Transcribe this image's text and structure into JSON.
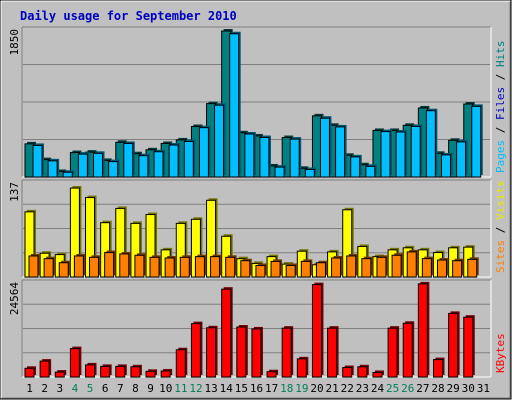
{
  "chart_data": {
    "title": "Daily usage for September 2010",
    "days": [
      {
        "label": "1",
        "weekend": false
      },
      {
        "label": "2",
        "weekend": false
      },
      {
        "label": "3",
        "weekend": false
      },
      {
        "label": "4",
        "weekend": true
      },
      {
        "label": "5",
        "weekend": true
      },
      {
        "label": "6",
        "weekend": false
      },
      {
        "label": "7",
        "weekend": false
      },
      {
        "label": "8",
        "weekend": false
      },
      {
        "label": "9",
        "weekend": false
      },
      {
        "label": "10",
        "weekend": false
      },
      {
        "label": "11",
        "weekend": true
      },
      {
        "label": "12",
        "weekend": true
      },
      {
        "label": "13",
        "weekend": false
      },
      {
        "label": "14",
        "weekend": false
      },
      {
        "label": "15",
        "weekend": false
      },
      {
        "label": "16",
        "weekend": false
      },
      {
        "label": "17",
        "weekend": false
      },
      {
        "label": "18",
        "weekend": true
      },
      {
        "label": "19",
        "weekend": true
      },
      {
        "label": "20",
        "weekend": false
      },
      {
        "label": "21",
        "weekend": false
      },
      {
        "label": "22",
        "weekend": false
      },
      {
        "label": "23",
        "weekend": false
      },
      {
        "label": "24",
        "weekend": false
      },
      {
        "label": "25",
        "weekend": true
      },
      {
        "label": "26",
        "weekend": true
      },
      {
        "label": "27",
        "weekend": false
      },
      {
        "label": "28",
        "weekend": false
      },
      {
        "label": "29",
        "weekend": false
      },
      {
        "label": "30",
        "weekend": false
      },
      {
        "label": "31",
        "weekend": false
      }
    ],
    "panels": [
      {
        "type": "bar",
        "max_label": "1850",
        "ymax": 1850,
        "legend": [
          {
            "text": "Pages",
            "color": "#00bfff"
          },
          {
            "text": "Files",
            "color": "#0000c0"
          },
          {
            "text": "Hits",
            "color": "#008080"
          }
        ],
        "series": [
          {
            "name": "Hits",
            "color": "#008080",
            "values": [
              420,
              220,
              70,
              310,
              315,
              210,
              440,
              295,
              345,
              425,
              470,
              640,
              930,
              1850,
              560,
              520,
              140,
              500,
              110,
              775,
              655,
              275,
              155,
              590,
              590,
              655,
              875,
              300,
              465,
              925,
              0
            ]
          },
          {
            "name": "Files",
            "color": "#0000c0",
            "values": [
              0,
              0,
              0,
              0,
              0,
              0,
              0,
              0,
              0,
              0,
              0,
              0,
              0,
              0,
              0,
              0,
              0,
              0,
              0,
              0,
              0,
              0,
              0,
              0,
              0,
              0,
              0,
              0,
              0,
              0,
              0
            ]
          },
          {
            "name": "Pages",
            "color": "#00bfff",
            "values": [
              400,
              205,
              60,
              290,
              300,
              195,
              425,
              270,
              320,
              405,
              450,
              625,
              910,
              1815,
              545,
              500,
              125,
              480,
              95,
              745,
              635,
              255,
              135,
              575,
              570,
              640,
              840,
              280,
              445,
              895,
              0
            ]
          }
        ]
      },
      {
        "type": "bar",
        "max_label": "137",
        "ymax": 137,
        "legend": [
          {
            "text": "Sites",
            "color": "#ff8000"
          },
          {
            "text": "Visits",
            "color": "#e8e800"
          }
        ],
        "series": [
          {
            "name": "Visits",
            "color": "#ffff00",
            "values": [
              96,
              35,
              33,
              131,
              117,
              80,
              101,
              79,
              92,
              40,
              79,
              85,
              113,
              60,
              27,
              20,
              30,
              19,
              38,
              18,
              37,
              99,
              45,
              30,
              40,
              43,
              40,
              36,
              43,
              44,
              0
            ]
          },
          {
            "name": "Sites",
            "color": "#ff8000",
            "values": [
              31,
              27,
              21,
              31,
              29,
              36,
              34,
              32,
              29,
              28,
              29,
              30,
              30,
              29,
              24,
              17,
              23,
              17,
              23,
              21,
              28,
              31,
              27,
              29,
              32,
              37,
              27,
              25,
              24,
              26,
              0
            ]
          }
        ]
      },
      {
        "type": "bar",
        "max_label": "24564",
        "ymax": 24564,
        "legend": [
          {
            "text": "KBytes",
            "color": "#ff0000"
          }
        ],
        "series": [
          {
            "name": "KBytes",
            "color": "#ff0000",
            "values": [
              2300,
              4200,
              1300,
              7500,
              3200,
              2800,
              2800,
              2700,
              1500,
              1600,
              7200,
              14100,
              13000,
              23200,
              13200,
              12700,
              1400,
              12900,
              4800,
              24400,
              12900,
              2500,
              2700,
              1200,
              12900,
              14200,
              24600,
              4600,
              16800,
              15800,
              0
            ]
          }
        ]
      }
    ]
  }
}
